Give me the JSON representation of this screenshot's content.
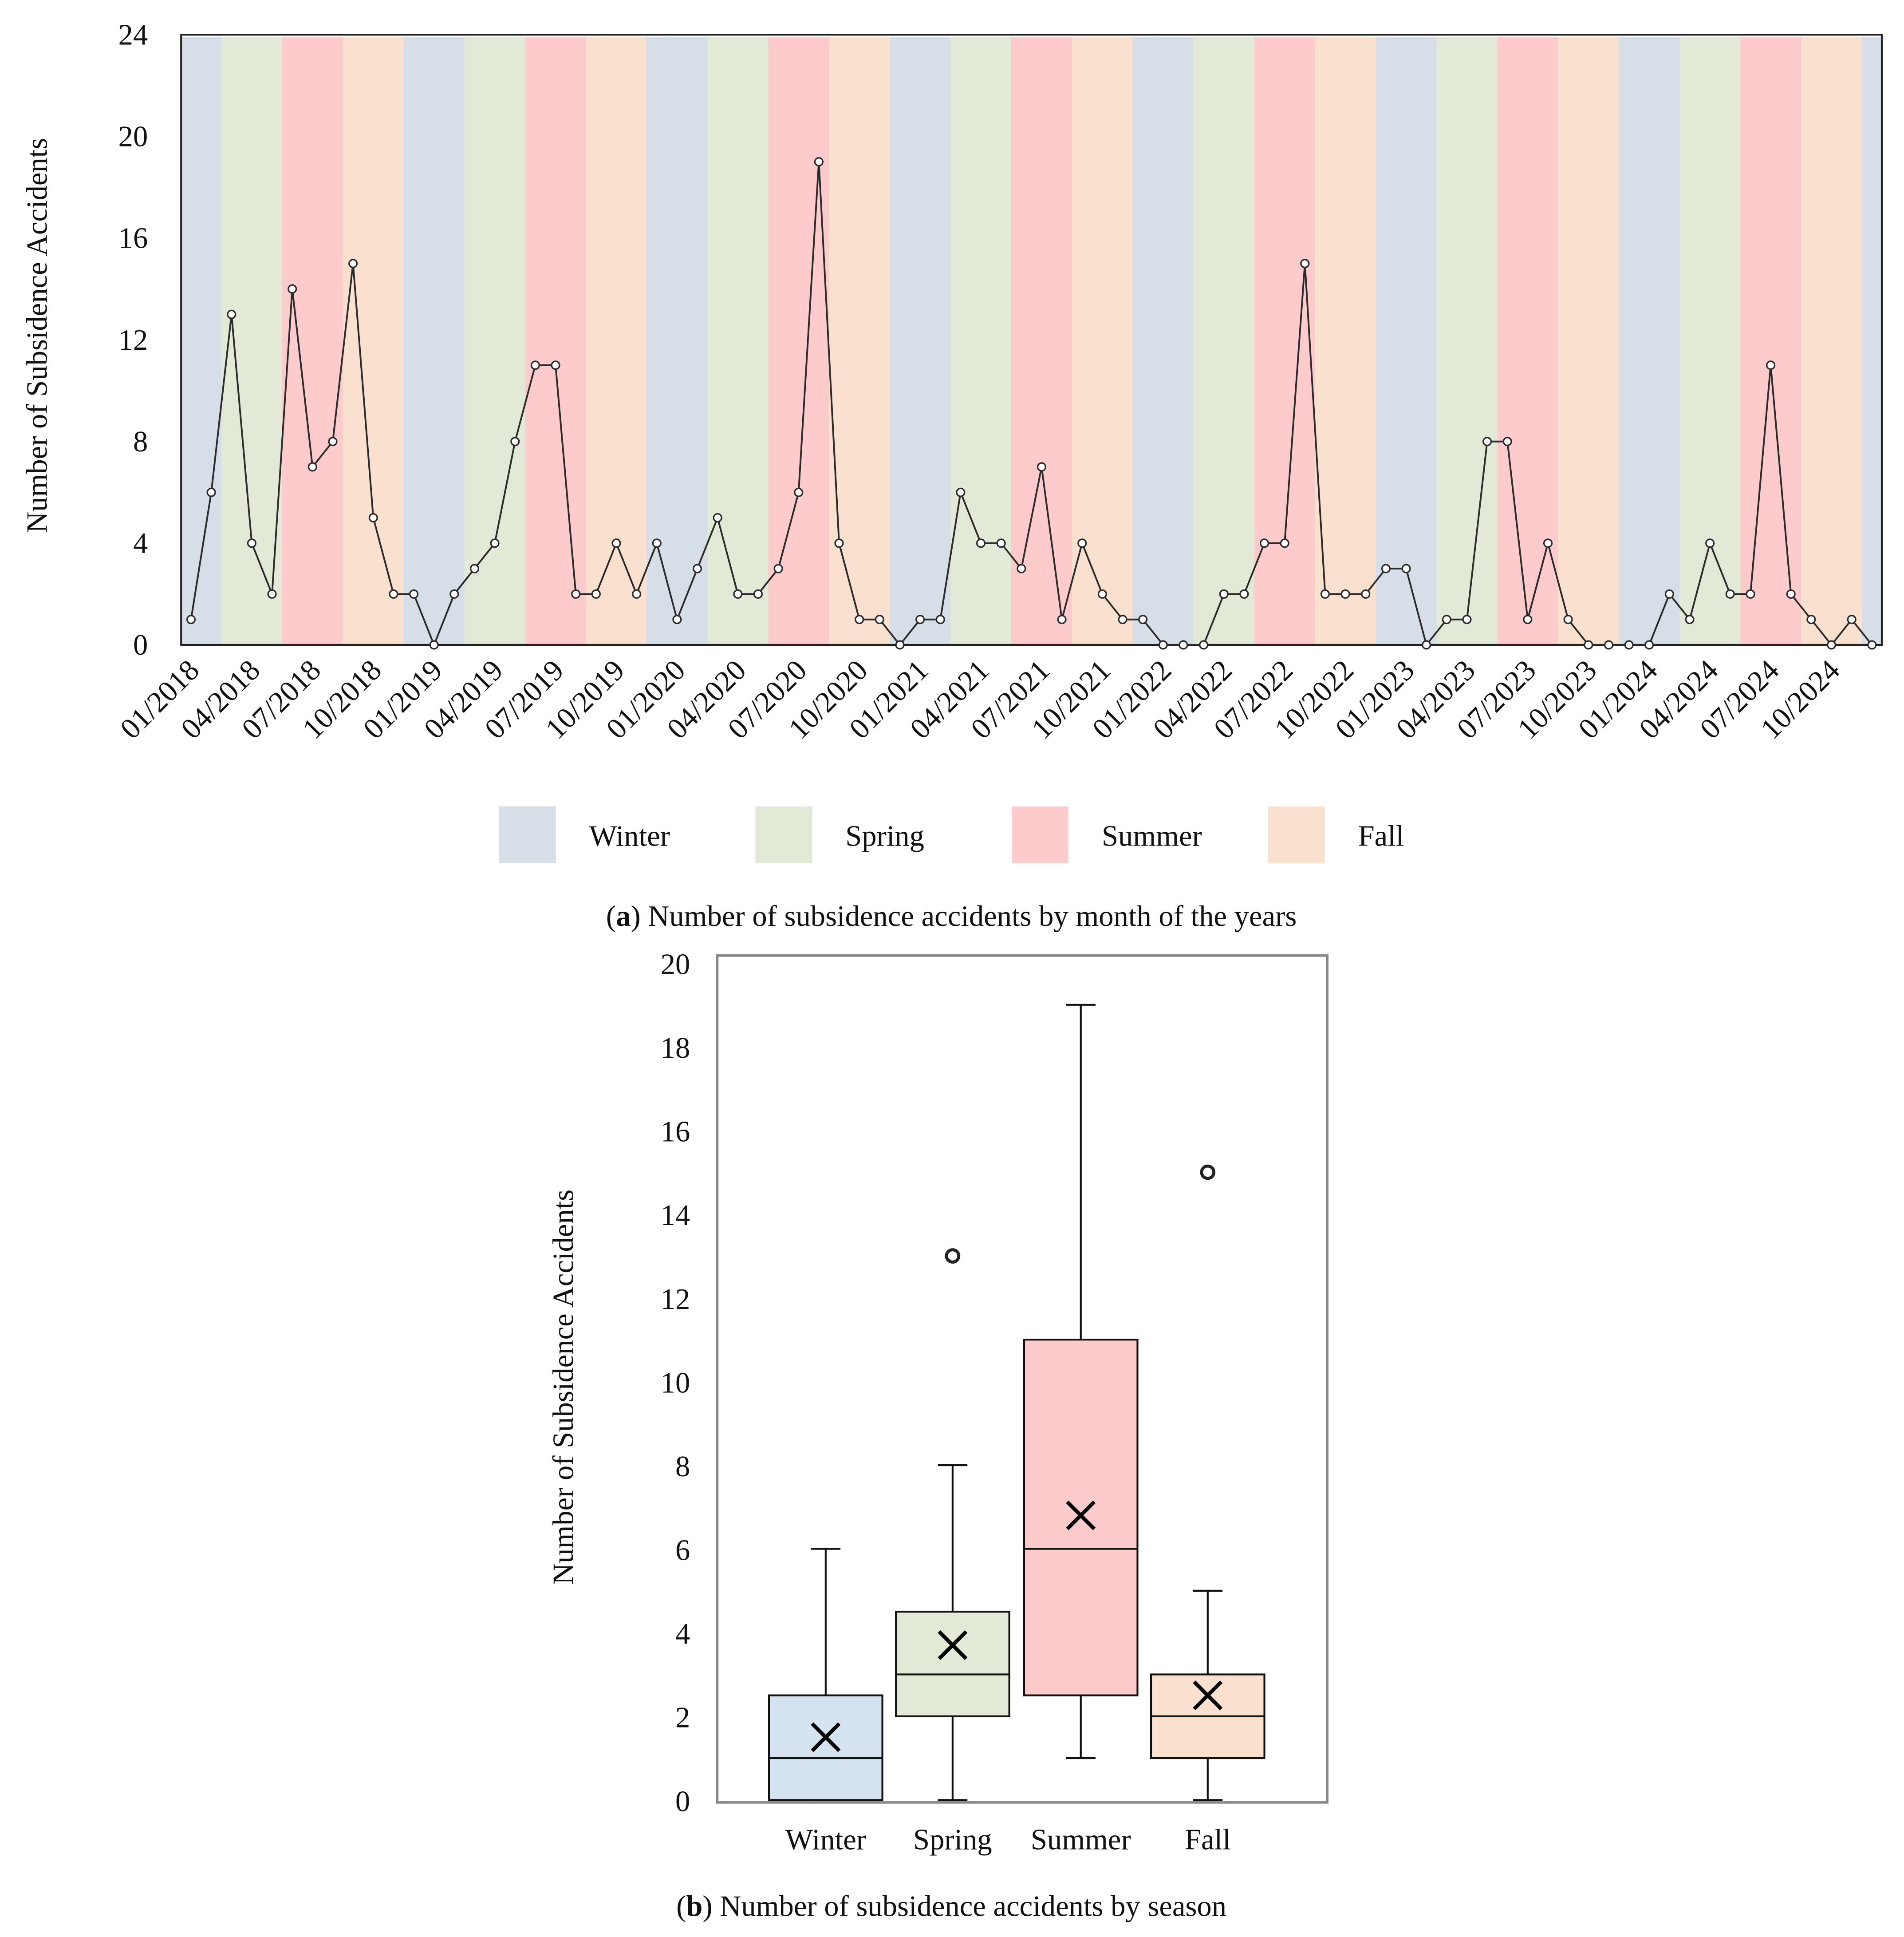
{
  "chart_data": [
    {
      "type": "line",
      "title": "Number of subsidence accidents by month of the years",
      "caption_prefix": "(",
      "caption_letter": "a",
      "caption_suffix": ") Number of subsidence accidents by month of the years",
      "xlabel": "",
      "ylabel": "Number of Subsidence Accidents",
      "ylim": [
        0,
        24
      ],
      "yticks": [
        0,
        4,
        8,
        12,
        16,
        20,
        24
      ],
      "start_year": 2018,
      "xtick_labels": [
        "01/2018",
        "04/2018",
        "07/2018",
        "10/2018",
        "01/2019",
        "04/2019",
        "07/2019",
        "10/2019",
        "01/2020",
        "04/2020",
        "07/2020",
        "10/2020",
        "01/2021",
        "04/2021",
        "07/2021",
        "10/2021",
        "01/2022",
        "04/2022",
        "07/2022",
        "10/2022",
        "01/2023",
        "04/2023",
        "07/2023",
        "10/2023",
        "01/2024",
        "04/2024",
        "07/2024",
        "10/2024"
      ],
      "values": [
        1,
        6,
        13,
        4,
        2,
        14,
        7,
        8,
        15,
        5,
        2,
        2,
        0,
        2,
        3,
        4,
        8,
        11,
        11,
        2,
        2,
        4,
        2,
        4,
        1,
        3,
        5,
        2,
        2,
        3,
        6,
        19,
        4,
        1,
        1,
        0,
        1,
        1,
        6,
        4,
        4,
        3,
        7,
        1,
        4,
        2,
        1,
        1,
        0,
        0,
        0,
        2,
        2,
        4,
        4,
        15,
        2,
        2,
        2,
        3,
        3,
        0,
        1,
        1,
        8,
        8,
        1,
        4,
        1,
        0,
        0,
        0,
        0,
        2,
        1,
        4,
        2,
        2,
        11,
        2,
        1,
        0,
        1,
        0
      ],
      "season_of_month": [
        "Winter",
        "Winter",
        "Spring",
        "Spring",
        "Spring",
        "Summer",
        "Summer",
        "Summer",
        "Fall",
        "Fall",
        "Fall",
        "Winter"
      ],
      "legend": [
        {
          "name": "Winter",
          "color": "#d6dee8"
        },
        {
          "name": "Spring",
          "color": "#e2e9d6"
        },
        {
          "name": "Summer",
          "color": "#fdcbcb"
        },
        {
          "name": "Fall",
          "color": "#f9e0cf"
        }
      ],
      "legend_placement": "bottom",
      "line_color": "#2a2a2a"
    },
    {
      "type": "box",
      "title": "Number of subsidence accidents by season",
      "caption_prefix": "(",
      "caption_letter": "b",
      "caption_suffix": ") Number of subsidence accidents by season",
      "ylabel": "Number of Subsidence Accidents",
      "ylim": [
        0,
        20
      ],
      "yticks": [
        0,
        2,
        4,
        6,
        8,
        10,
        12,
        14,
        16,
        18,
        20
      ],
      "categories": [
        "Winter",
        "Spring",
        "Summer",
        "Fall"
      ],
      "series": [
        {
          "name": "Winter",
          "min": 0,
          "q1": 0,
          "median": 1,
          "q3": 2.5,
          "max": 6,
          "mean": 1.5,
          "outliers": [],
          "color": "#d5e2f0"
        },
        {
          "name": "Spring",
          "min": 0,
          "q1": 2,
          "median": 3,
          "q3": 4.5,
          "max": 8,
          "mean": 3.7,
          "outliers": [
            13
          ],
          "color": "#e2e9d6"
        },
        {
          "name": "Summer",
          "min": 1,
          "q1": 2.5,
          "median": 6,
          "q3": 11,
          "max": 19,
          "mean": 6.8,
          "outliers": [],
          "color": "#fdcbcb"
        },
        {
          "name": "Fall",
          "min": 0,
          "q1": 1,
          "median": 2,
          "q3": 3,
          "max": 5,
          "mean": 2.5,
          "outliers": [
            15
          ],
          "color": "#f9e0cf"
        }
      ]
    }
  ]
}
